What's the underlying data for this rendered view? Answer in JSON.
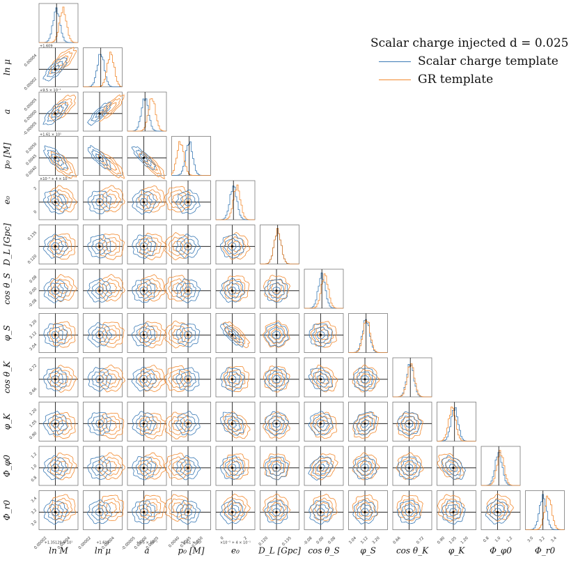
{
  "chart_data": {
    "type": "corner",
    "params": [
      {
        "label": "ln M",
        "ticks": [
          "0.00002",
          "0.00004"
        ],
        "offset": "+1.35129 × 10¹"
      },
      {
        "label": "ln μ",
        "ticks": [
          "0.00002",
          "0.00004"
        ],
        "offset": "+1.609"
      },
      {
        "label": "a",
        "ticks": [
          "-0.00005",
          "0.00000",
          "0.00005"
        ],
        "offset": "+9.5 × 10⁻¹"
      },
      {
        "label": "p₀ [M]",
        "ticks": [
          "0.0040",
          "0.0045",
          "0.0050"
        ],
        "offset": "+1.61 × 10¹"
      },
      {
        "label": "e₀",
        "ticks": [
          "0",
          "2"
        ],
        "offset": "×10⁻⁵ + 4 × 10⁻¹"
      },
      {
        "label": "D_L [Gpc]",
        "ticks": [
          "0.120",
          "0.135"
        ],
        "offset": ""
      },
      {
        "label": "cos θ_S",
        "ticks": [
          "-0.08",
          "0.00",
          "0.08"
        ],
        "offset": ""
      },
      {
        "label": "φ_S",
        "ticks": [
          "3.04",
          "3.12",
          "3.20"
        ],
        "offset": ""
      },
      {
        "label": "cos θ_K",
        "ticks": [
          "0.66",
          "0.72"
        ],
        "offset": ""
      },
      {
        "label": "φ_K",
        "ticks": [
          "0.90",
          "1.05",
          "1.20"
        ],
        "offset": ""
      },
      {
        "label": "Φ_φ0",
        "ticks": [
          "0.8",
          "1.0",
          "1.2"
        ],
        "offset": ""
      },
      {
        "label": "Φ_r0",
        "ticks": [
          "3.0",
          "3.2",
          "3.4"
        ],
        "offset": ""
      }
    ],
    "series": [
      {
        "name": "Scalar charge template",
        "color": "#3b7ab5"
      },
      {
        "name": "GR template",
        "color": "#f2892e"
      }
    ],
    "gr_shift": [
      0.55,
      0.85,
      0.6,
      -0.75,
      0.3,
      0.0,
      0.25,
      0.05,
      0.05,
      -0.2,
      0.15,
      0.45
    ],
    "correlations": {
      "0-1": 0.75,
      "0-2": 0.7,
      "0-3": -0.7,
      "1-2": 0.85,
      "1-3": -0.8,
      "2-3": -0.85,
      "4-7": -0.8,
      "0-4": -0.3,
      "9-4": -0.35,
      "9-10": -0.4,
      "6-10": 0.3,
      "8-6": -0.3,
      "7-9": 0.3
    },
    "legend_title": "Scalar charge injected d = 0.025",
    "legend_position": "top-right"
  }
}
